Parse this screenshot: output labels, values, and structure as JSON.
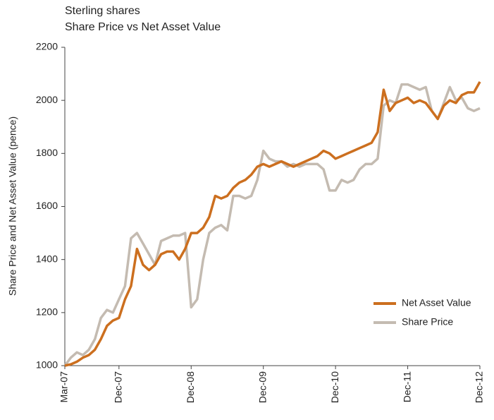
{
  "chart_data": {
    "type": "line",
    "title": "Sterling shares",
    "subtitle": "Share Price vs Net Asset Value",
    "y_label": "Share Price and Net Asset Value (pence)",
    "categories": [
      "Mar-07",
      null,
      null,
      null,
      null,
      null,
      null,
      null,
      null,
      "Dec-07",
      null,
      null,
      null,
      null,
      null,
      null,
      null,
      null,
      null,
      null,
      null,
      "Dec-08",
      null,
      null,
      null,
      null,
      null,
      null,
      null,
      null,
      null,
      null,
      null,
      "Dec-09",
      null,
      null,
      null,
      null,
      null,
      null,
      null,
      null,
      null,
      null,
      null,
      "Dec-10",
      null,
      null,
      null,
      null,
      null,
      null,
      null,
      null,
      null,
      null,
      null,
      "Dec-11",
      null,
      null,
      null,
      null,
      null,
      null,
      null,
      null,
      null,
      null,
      null,
      "Dec-12"
    ],
    "series": [
      {
        "name": "Net Asset Value",
        "color": "#cc6f1f",
        "values": [
          1000,
          1005,
          1015,
          1030,
          1040,
          1060,
          1100,
          1150,
          1170,
          1180,
          1250,
          1300,
          1440,
          1380,
          1360,
          1380,
          1420,
          1430,
          1430,
          1400,
          1440,
          1500,
          1500,
          1520,
          1560,
          1640,
          1630,
          1640,
          1670,
          1690,
          1700,
          1720,
          1750,
          1760,
          1750,
          1760,
          1770,
          1760,
          1750,
          1760,
          1770,
          1780,
          1790,
          1810,
          1800,
          1780,
          1790,
          1800,
          1810,
          1820,
          1830,
          1840,
          1880,
          2040,
          1960,
          1990,
          2000,
          2010,
          1990,
          2000,
          1990,
          1960,
          1930,
          1980,
          2000,
          1990,
          2020,
          2030,
          2030,
          2070
        ]
      },
      {
        "name": "Share Price",
        "color": "#c4bbb1",
        "values": [
          1000,
          1030,
          1050,
          1040,
          1060,
          1100,
          1180,
          1210,
          1200,
          1250,
          1300,
          1480,
          1500,
          1460,
          1420,
          1380,
          1470,
          1480,
          1490,
          1490,
          1500,
          1220,
          1250,
          1400,
          1500,
          1520,
          1530,
          1510,
          1640,
          1640,
          1630,
          1640,
          1700,
          1810,
          1780,
          1770,
          1770,
          1750,
          1760,
          1750,
          1760,
          1760,
          1760,
          1740,
          1660,
          1660,
          1700,
          1690,
          1700,
          1740,
          1760,
          1760,
          1780,
          1980,
          2000,
          1990,
          2060,
          2060,
          2050,
          2040,
          2050,
          1960,
          1930,
          1990,
          2050,
          2000,
          2010,
          1970,
          1960,
          1970
        ]
      }
    ],
    "ylim": [
      1000,
      2200
    ],
    "yticks": [
      1000,
      1200,
      1400,
      1600,
      1800,
      2000,
      2200
    ],
    "grid": false,
    "legend": "lower right"
  }
}
